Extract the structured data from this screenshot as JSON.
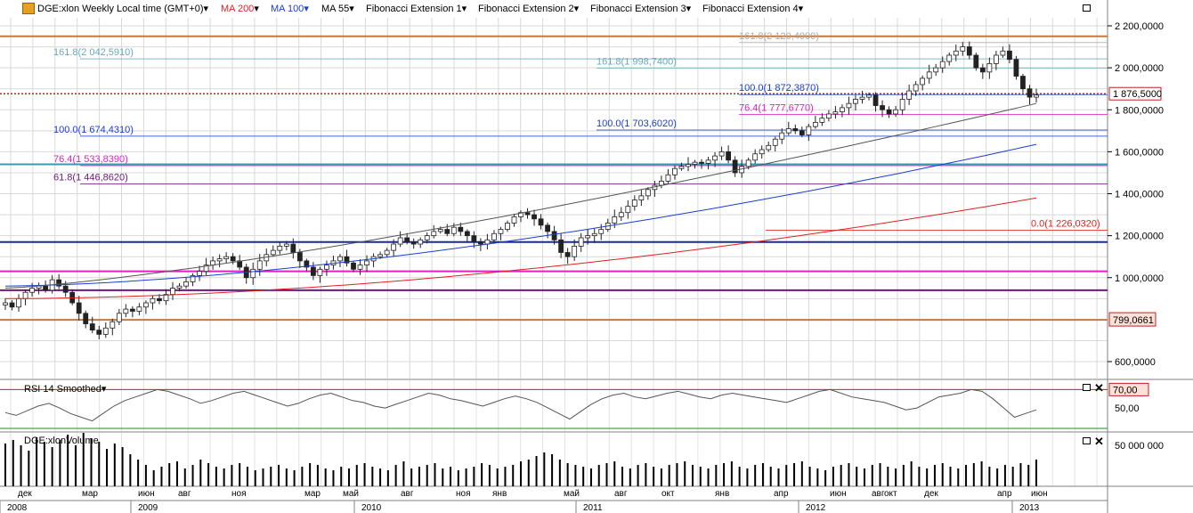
{
  "header": {
    "symbol": "DGE:xlon Weekly Local time (GMT+0)",
    "indicators": [
      {
        "label": "MA 200",
        "color": "#e02020"
      },
      {
        "label": "MA 100",
        "color": "#1a3fd0"
      },
      {
        "label": "MA 55",
        "color": "#000000"
      },
      {
        "label": "Fibonacci Extension 1",
        "color": "#000000"
      },
      {
        "label": "Fibonacci Extension 2",
        "color": "#000000"
      },
      {
        "label": "Fibonacci Extension 3",
        "color": "#000000"
      },
      {
        "label": "Fibonacci Extension 4",
        "color": "#000000"
      }
    ]
  },
  "rsi_panel": {
    "title": "RSI 14 Smoothed",
    "level_label": "70,00",
    "tick_label": "50,00"
  },
  "volume_panel": {
    "title": "DGE:xlonVolume",
    "tick_label": "50 000 000"
  },
  "chart_data": {
    "type": "line",
    "subtype": "candlestick",
    "title": "DGE:xlon Weekly",
    "y_ticks": [
      "2 200,0000",
      "2 000,0000",
      "1 800,0000",
      "1 600,0000",
      "1 400,0000",
      "1 200,0000",
      "1 000,0000",
      "600,0000"
    ],
    "ylim": [
      500,
      2250
    ],
    "price_tag": "1 876,5000",
    "price_tag_value": 1876.5,
    "support_tag": "799,0661",
    "support_value": 799.0661,
    "x_month_labels": [
      "дек",
      "мар",
      "июн",
      "авг",
      "ноя",
      "мар",
      "май",
      "авг",
      "ноя",
      "янв",
      "май",
      "авг",
      "окт",
      "янв",
      "апр",
      "июн",
      "авг",
      "окт",
      "дек",
      "апр",
      "июн"
    ],
    "x_year_labels": [
      "2008",
      "2009",
      "2010",
      "2011",
      "2012",
      "2013"
    ],
    "fib_labels": [
      {
        "text": "161.8(2 120,4000)",
        "value": 2120.4,
        "color": "#aaaaaa"
      },
      {
        "text": "161.8(2 042,5910)",
        "value": 2042.591,
        "color": "#6aa8b8"
      },
      {
        "text": "161.8(1 998,7400)",
        "value": 1998.74,
        "color": "#6aa8b8"
      },
      {
        "text": "100.0(1 872,3870)",
        "value": 1872.387,
        "color": "#1a3fd0"
      },
      {
        "text": "76.4(1 777,6770)",
        "value": 1777.677,
        "color": "#e020c0"
      },
      {
        "text": "100.0(1 703,6020)",
        "value": 1703.602,
        "color": "#1a3fd0"
      },
      {
        "text": "100.0(1 674,4310)",
        "value": 1674.431,
        "color": "#1a3fd0"
      },
      {
        "text": "76.4(1 533,8390)",
        "value": 1533.839,
        "color": "#e020c0"
      },
      {
        "text": "61.8(1 446,8620)",
        "value": 1446.862,
        "color": "#6a1a7a"
      },
      {
        "text": "0.0(1 226,0320)",
        "value": 1226.032,
        "color": "#e02020"
      }
    ],
    "horizontal_lines": [
      {
        "value": 2150,
        "color": "#c8783a"
      },
      {
        "value": 1170,
        "color": "#1a2a9a"
      },
      {
        "value": 1030,
        "color": "#e020c0"
      },
      {
        "value": 940,
        "color": "#6a1a7a"
      },
      {
        "value": 799.0661,
        "color": "#c8783a"
      },
      {
        "value": 1540,
        "color": "#3a9ab0"
      }
    ],
    "close_weekly": [
      880,
      860,
      900,
      930,
      950,
      960,
      940,
      990,
      960,
      930,
      880,
      830,
      780,
      750,
      730,
      760,
      790,
      830,
      850,
      840,
      860,
      880,
      900,
      890,
      920,
      950,
      960,
      980,
      1010,
      1030,
      1060,
      1080,
      1090,
      1100,
      1080,
      1050,
      1000,
      1040,
      1080,
      1110,
      1130,
      1150,
      1160,
      1120,
      1080,
      1050,
      1010,
      1040,
      1060,
      1080,
      1100,
      1070,
      1040,
      1060,
      1080,
      1100,
      1110,
      1130,
      1160,
      1190,
      1170,
      1160,
      1180,
      1200,
      1220,
      1230,
      1210,
      1240,
      1220,
      1200,
      1170,
      1160,
      1180,
      1210,
      1230,
      1260,
      1290,
      1310,
      1300,
      1280,
      1250,
      1220,
      1180,
      1120,
      1100,
      1150,
      1190,
      1200,
      1210,
      1230,
      1260,
      1290,
      1310,
      1340,
      1370,
      1390,
      1420,
      1440,
      1460,
      1490,
      1520,
      1530,
      1540,
      1550,
      1545,
      1560,
      1580,
      1600,
      1560,
      1500,
      1530,
      1560,
      1590,
      1610,
      1630,
      1660,
      1690,
      1710,
      1700,
      1680,
      1720,
      1740,
      1760,
      1780,
      1790,
      1810,
      1830,
      1850,
      1860,
      1870,
      1820,
      1800,
      1780,
      1800,
      1850,
      1890,
      1920,
      1950,
      1980,
      2000,
      2030,
      2060,
      2080,
      2100,
      2060,
      2000,
      1980,
      2020,
      2060,
      2080,
      2040,
      1960,
      1900,
      1860,
      1870
    ],
    "ma55": {
      "start": 950,
      "end": 1830
    },
    "ma100": {
      "start": 960,
      "end": 1635
    },
    "ma200": {
      "start": 900,
      "end": 1380
    },
    "rsi": {
      "ylim": [
        25,
        80
      ],
      "upper_level": 70,
      "values": [
        45,
        42,
        47,
        52,
        55,
        50,
        44,
        40,
        36,
        44,
        52,
        58,
        62,
        66,
        70,
        68,
        64,
        60,
        55,
        58,
        62,
        66,
        68,
        64,
        60,
        56,
        52,
        55,
        60,
        64,
        66,
        62,
        58,
        56,
        52,
        50,
        54,
        58,
        62,
        66,
        64,
        60,
        58,
        55,
        52,
        56,
        60,
        63,
        60,
        56,
        50,
        44,
        38,
        46,
        54,
        60,
        64,
        66,
        62,
        60,
        63,
        66,
        68,
        65,
        62,
        60,
        64,
        66,
        64,
        62,
        60,
        58,
        56,
        60,
        64,
        68,
        70,
        66,
        62,
        60,
        58,
        56,
        52,
        48,
        50,
        56,
        62,
        64,
        66,
        70,
        68,
        60,
        50,
        40,
        44,
        48
      ]
    },
    "volume": {
      "ymax": 60000000,
      "values": [
        48,
        52,
        46,
        40,
        55,
        50,
        44,
        52,
        58,
        46,
        60,
        54,
        50,
        42,
        48,
        44,
        36,
        30,
        24,
        18,
        22,
        26,
        28,
        20,
        24,
        30,
        26,
        22,
        20,
        24,
        26,
        22,
        18,
        20,
        22,
        24,
        20,
        18,
        22,
        26,
        24,
        20,
        18,
        22,
        20,
        24,
        26,
        22,
        20,
        18,
        24,
        28,
        20,
        22,
        24,
        26,
        20,
        22,
        18,
        20,
        22,
        26,
        24,
        20,
        22,
        24,
        28,
        30,
        34,
        38,
        36,
        30,
        26,
        24,
        22,
        20,
        24,
        26,
        28,
        22,
        20,
        24,
        26,
        22,
        20,
        24,
        26,
        28,
        24,
        22,
        20,
        24,
        26,
        28,
        22,
        20,
        24,
        26,
        22,
        20,
        24,
        26,
        28,
        22,
        20,
        18,
        22,
        24,
        26,
        22,
        20,
        24,
        26,
        22,
        20,
        24,
        28,
        22,
        20,
        24,
        26,
        22,
        20,
        24,
        26,
        28,
        22,
        20,
        24,
        22,
        26,
        24,
        30
      ]
    }
  }
}
